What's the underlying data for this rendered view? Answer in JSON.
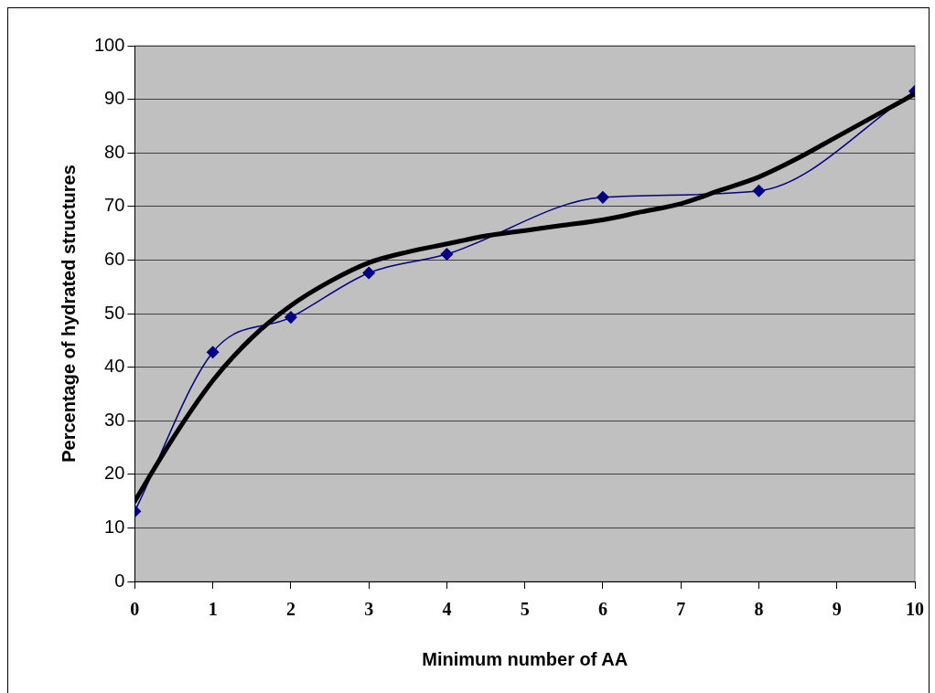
{
  "chart_data": {
    "type": "line",
    "xlabel": "Minimum number of AA",
    "ylabel": "Percentage of hydrated structures",
    "xlim": [
      0,
      10
    ],
    "xticks": [
      0,
      1,
      2,
      3,
      4,
      5,
      6,
      7,
      8,
      9,
      10
    ],
    "ylim": [
      0,
      100
    ],
    "yticks": [
      0,
      10,
      20,
      30,
      40,
      50,
      60,
      70,
      80,
      90,
      100
    ],
    "grid": "y",
    "legend": false,
    "series": [
      {
        "color": "#000080",
        "marker": "diamond",
        "x": [
          0,
          1,
          2,
          3,
          4,
          6,
          8,
          10
        ],
        "values": [
          13.1,
          42.8,
          49.3,
          57.6,
          61.1,
          71.7,
          72.9,
          91.5
        ]
      },
      {
        "color": "#000000",
        "marker": "none",
        "x": [
          0,
          0.5,
          1,
          1.5,
          2,
          2.5,
          3,
          3.5,
          4,
          4.5,
          5,
          5.5,
          6,
          6.5,
          7,
          7.5,
          8,
          8.5,
          9,
          9.5,
          10
        ],
        "values": [
          15,
          27,
          37.5,
          45.5,
          51.5,
          56,
          59.5,
          61.5,
          63,
          64.5,
          65.5,
          66.5,
          67.5,
          69,
          70.5,
          73,
          75.5,
          79,
          83,
          87,
          91
        ]
      }
    ]
  }
}
